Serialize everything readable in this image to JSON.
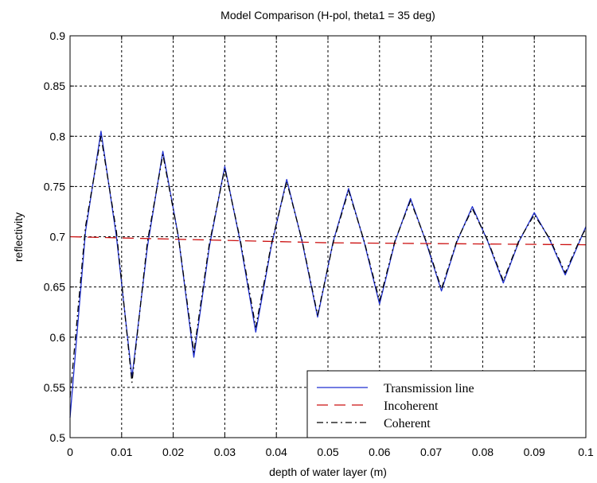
{
  "chart_data": {
    "type": "line",
    "title": "Model Comparison (H-pol, theta1 = 35 deg)",
    "xlabel": "depth of water layer (m)",
    "ylabel": "reflectivity",
    "xlim": [
      0,
      0.1
    ],
    "ylim": [
      0.5,
      0.9
    ],
    "x_ticks": [
      0,
      0.01,
      0.02,
      0.03,
      0.04,
      0.05,
      0.06,
      0.07,
      0.08,
      0.09,
      0.1
    ],
    "x_tick_labels": [
      "0",
      "0.01",
      "0.02",
      "0.03",
      "0.04",
      "0.05",
      "0.06",
      "0.07",
      "0.08",
      "0.09",
      "0.1"
    ],
    "y_ticks": [
      0.5,
      0.55,
      0.6,
      0.65,
      0.7,
      0.75,
      0.8,
      0.85,
      0.9
    ],
    "y_tick_labels": [
      "0.5",
      "0.55",
      "0.6",
      "0.65",
      "0.7",
      "0.75",
      "0.8",
      "0.85",
      "0.9"
    ],
    "grid": true,
    "legend_position": "bottom-right",
    "series": [
      {
        "name": "Transmission line",
        "color": "#1f2fd0",
        "style": "solid",
        "x": [
          0,
          0.003,
          0.006,
          0.009,
          0.012,
          0.015,
          0.018,
          0.021,
          0.024,
          0.027,
          0.03,
          0.033,
          0.036,
          0.039,
          0.042,
          0.045,
          0.048,
          0.051,
          0.054,
          0.057,
          0.06,
          0.063,
          0.066,
          0.069,
          0.072,
          0.075,
          0.078,
          0.081,
          0.084,
          0.087,
          0.09,
          0.093,
          0.096,
          0.099,
          0.1
        ],
        "y": [
          0.52,
          0.705,
          0.805,
          0.7,
          0.56,
          0.69,
          0.785,
          0.7,
          0.58,
          0.69,
          0.77,
          0.695,
          0.605,
          0.69,
          0.757,
          0.695,
          0.62,
          0.695,
          0.748,
          0.695,
          0.633,
          0.695,
          0.738,
          0.695,
          0.646,
          0.695,
          0.73,
          0.695,
          0.654,
          0.695,
          0.724,
          0.697,
          0.662,
          0.698,
          0.71
        ]
      },
      {
        "name": "Incoherent",
        "color": "#cc1111",
        "style": "dashed",
        "x": [
          0,
          0.05,
          0.1
        ],
        "y": [
          0.7,
          0.694,
          0.692
        ]
      },
      {
        "name": "Coherent",
        "color": "#000000",
        "style": "dashdot",
        "x": [
          0,
          0.003,
          0.006,
          0.009,
          0.012,
          0.015,
          0.018,
          0.021,
          0.024,
          0.027,
          0.03,
          0.033,
          0.036,
          0.039,
          0.042,
          0.045,
          0.048,
          0.051,
          0.054,
          0.057,
          0.06,
          0.063,
          0.066,
          0.069,
          0.072,
          0.075,
          0.078,
          0.081,
          0.084,
          0.087,
          0.09,
          0.093,
          0.096,
          0.099,
          0.1
        ],
        "y": [
          0.54,
          0.71,
          0.8,
          0.705,
          0.555,
          0.695,
          0.782,
          0.7,
          0.585,
          0.693,
          0.768,
          0.697,
          0.61,
          0.692,
          0.755,
          0.696,
          0.622,
          0.694,
          0.746,
          0.696,
          0.636,
          0.696,
          0.736,
          0.696,
          0.648,
          0.696,
          0.728,
          0.696,
          0.656,
          0.696,
          0.722,
          0.698,
          0.664,
          0.699,
          0.708
        ]
      }
    ]
  }
}
